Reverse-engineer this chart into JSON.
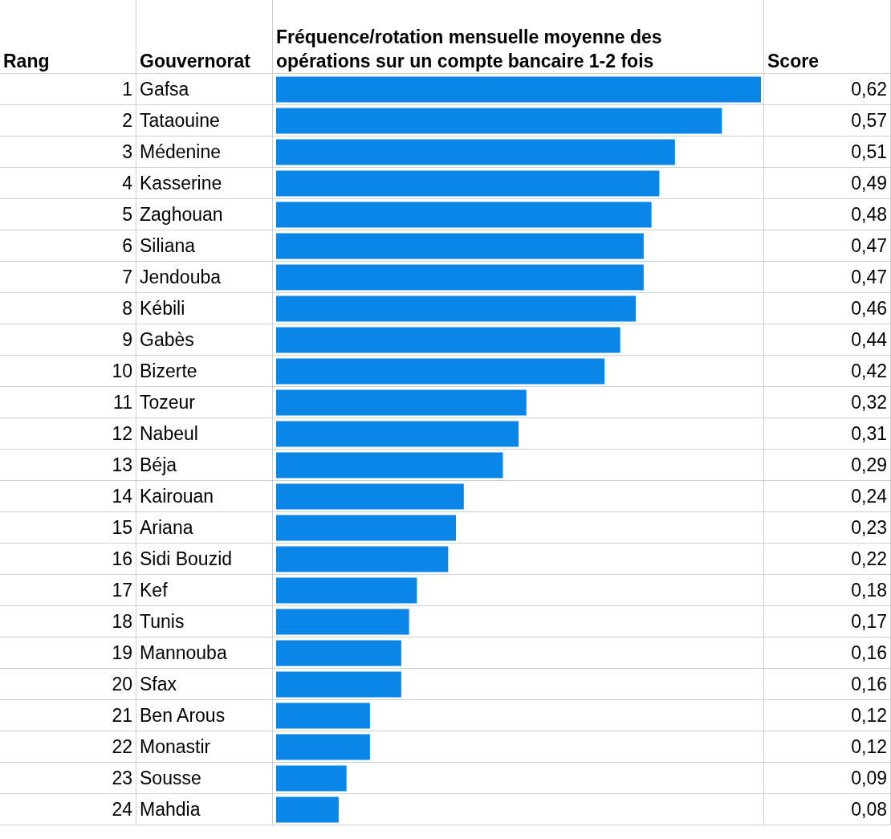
{
  "chart_data": {
    "type": "bar",
    "orientation": "horizontal",
    "title": "Fréquence/rotation mensuelle moyenne des opérations sur un compte bancaire 1-2 fois",
    "ylabel": "Gouvernorat",
    "y2label": "Rang",
    "annotations": [
      "Score"
    ],
    "categories": [
      "Gafsa",
      "Tataouine",
      "Médenine",
      "Kasserine",
      "Zaghouan",
      "Siliana",
      "Jendouba",
      "Kébili",
      "Gabès",
      "Bizerte",
      "Tozeur",
      "Nabeul",
      "Béja",
      "Kairouan",
      "Ariana",
      "Sidi Bouzid",
      "Kef",
      "Tunis",
      "Mannouba",
      "Sfax",
      "Ben Arous",
      "Monastir",
      "Sousse",
      "Mahdia"
    ],
    "y2_categories": [
      "1",
      "2",
      "3",
      "4",
      "5",
      "6",
      "7",
      "8",
      "9",
      "10",
      "11",
      "12",
      "13",
      "14",
      "15",
      "16",
      "17",
      "18",
      "19",
      "20",
      "21",
      "22",
      "23",
      "24"
    ],
    "values": [
      0.62,
      0.57,
      0.51,
      0.49,
      0.48,
      0.47,
      0.47,
      0.46,
      0.44,
      0.42,
      0.32,
      0.31,
      0.29,
      0.24,
      0.23,
      0.22,
      0.18,
      0.17,
      0.16,
      0.16,
      0.12,
      0.12,
      0.09,
      0.08
    ],
    "value_labels": [
      "0,62",
      "0,57",
      "0,51",
      "0,49",
      "0,48",
      "0,47",
      "0,47",
      "0,46",
      "0,44",
      "0,42",
      "0,32",
      "0,31",
      "0,29",
      "0,24",
      "0,23",
      "0,22",
      "0,18",
      "0,17",
      "0,16",
      "0,16",
      "0,12",
      "0,12",
      "0,09",
      "0,08"
    ],
    "color": "#0a86e8"
  }
}
